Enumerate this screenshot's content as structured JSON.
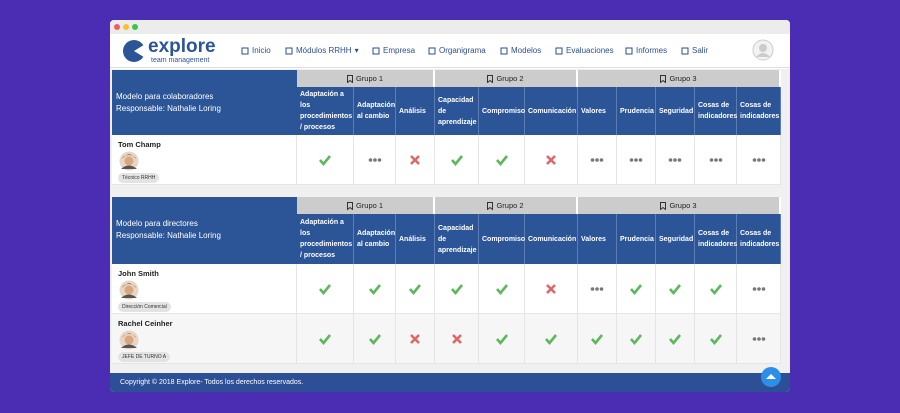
{
  "nav": {
    "logo": "explore",
    "tagline": "team management",
    "items": [
      "Inicio",
      "Módulos RRHH",
      "Empresa",
      "Organigrama",
      "Modelos",
      "Evaluaciones",
      "Informes",
      "Salir"
    ]
  },
  "sections": [
    {
      "model": "Modelo para colaboradores",
      "responsible": "Responsable: Nathalie Loring",
      "groups": [
        {
          "name": "Grupo 1",
          "columns": [
            "Adaptación a los procedimientos / procesos",
            "Adaptación al cambio",
            "Análisis"
          ]
        },
        {
          "name": "Grupo 2",
          "columns": [
            "Capacidad de aprendizaje",
            "Compromiso",
            "Comunicación"
          ]
        },
        {
          "name": "Grupo 3",
          "columns": [
            "Valores",
            "Prudencia",
            "Seguridad",
            "Cosas de indicadores",
            "Cosas de indicadores"
          ]
        }
      ],
      "rows": [
        {
          "name": "Tom Champ",
          "role": "Técnico RRHH",
          "status": [
            "check",
            "dots",
            "cross",
            "check",
            "check",
            "cross",
            "dots",
            "dots",
            "dots",
            "dots",
            "dots"
          ]
        }
      ]
    },
    {
      "model": "Modelo para directores",
      "responsible": "Responsable: Nathalie Loring",
      "groups": [
        {
          "name": "Grupo 1",
          "columns": [
            "Adaptación a los procedimientos / procesos",
            "Adaptación al cambio",
            "Análisis"
          ]
        },
        {
          "name": "Grupo 2",
          "columns": [
            "Capacidad de aprendizaje",
            "Compromiso",
            "Comunicación"
          ]
        },
        {
          "name": "Grupo 3",
          "columns": [
            "Valores",
            "Prudencia",
            "Seguridad",
            "Cosas de indicadores",
            "Cosas de indicadores"
          ]
        }
      ],
      "rows": [
        {
          "name": "John Smith",
          "role": "Dirección Comercial",
          "status": [
            "check",
            "check",
            "check",
            "check",
            "check",
            "cross",
            "dots",
            "check",
            "check",
            "check",
            "dots"
          ]
        },
        {
          "name": "Rachel Ceinher",
          "role": "JEFE DE TURNO A",
          "status": [
            "check",
            "check",
            "cross",
            "cross",
            "check",
            "check",
            "check",
            "check",
            "check",
            "check",
            "dots"
          ]
        }
      ]
    }
  ],
  "footer": "Copyright © 2018 Explore- Todos los derechos reservados."
}
